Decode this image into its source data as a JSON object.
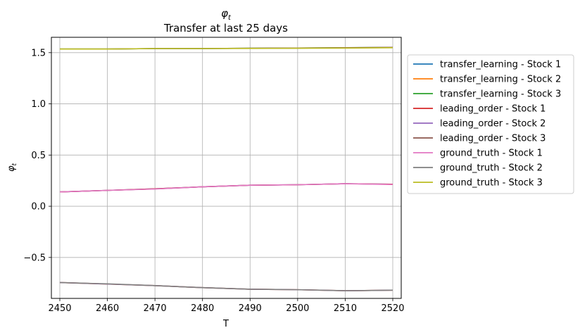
{
  "chart_data": {
    "type": "line",
    "title": "φ_t",
    "subtitle": "Transfer at last 25 days",
    "xlabel": "T",
    "ylabel": "φ_t",
    "xlim": [
      2450,
      2520
    ],
    "ylim": [
      -0.9,
      1.65
    ],
    "xticks": [
      2450,
      2460,
      2470,
      2480,
      2490,
      2500,
      2510,
      2520
    ],
    "xtick_labels": [
      "2450",
      "2460",
      "2470",
      "2480",
      "2490",
      "2500",
      "2510",
      "2520"
    ],
    "yticks": [
      -0.5,
      0.0,
      0.5,
      1.0,
      1.5
    ],
    "ytick_labels": [
      "−0.5",
      "0.0",
      "0.5",
      "1.0",
      "1.5"
    ],
    "grid": true,
    "legend_position": "outside-right",
    "x": [
      2450,
      2460,
      2470,
      2480,
      2490,
      2500,
      2510,
      2520
    ],
    "series": [
      {
        "name": "transfer_learning - Stock 1",
        "color": "#1f77b4",
        "values": [
          0.14,
          0.155,
          0.17,
          0.19,
          0.205,
          0.21,
          0.22,
          0.215
        ]
      },
      {
        "name": "transfer_learning - Stock 2",
        "color": "#ff7f0e",
        "values": [
          -0.745,
          -0.76,
          -0.775,
          -0.795,
          -0.81,
          -0.815,
          -0.825,
          -0.82
        ]
      },
      {
        "name": "transfer_learning - Stock 3",
        "color": "#2ca02c",
        "values": [
          1.535,
          1.535,
          1.54,
          1.54,
          1.543,
          1.545,
          1.548,
          1.552
        ]
      },
      {
        "name": "leading_order - Stock 1",
        "color": "#d62728",
        "values": [
          0.14,
          0.155,
          0.17,
          0.19,
          0.205,
          0.21,
          0.22,
          0.215
        ]
      },
      {
        "name": "leading_order - Stock 2",
        "color": "#9467bd",
        "values": [
          -0.745,
          -0.76,
          -0.775,
          -0.795,
          -0.81,
          -0.815,
          -0.825,
          -0.82
        ]
      },
      {
        "name": "leading_order - Stock 3",
        "color": "#8c564b",
        "values": [
          1.535,
          1.535,
          1.54,
          1.54,
          1.543,
          1.545,
          1.548,
          1.552
        ]
      },
      {
        "name": "ground_truth - Stock 1",
        "color": "#e377c2",
        "values": [
          0.14,
          0.155,
          0.168,
          0.19,
          0.205,
          0.21,
          0.22,
          0.212
        ]
      },
      {
        "name": "ground_truth - Stock 2",
        "color": "#7f7f7f",
        "values": [
          -0.745,
          -0.758,
          -0.775,
          -0.795,
          -0.81,
          -0.815,
          -0.825,
          -0.82
        ]
      },
      {
        "name": "ground_truth - Stock 3",
        "color": "#bcbd22",
        "values": [
          1.535,
          1.535,
          1.54,
          1.54,
          1.541,
          1.543,
          1.545,
          1.548
        ]
      }
    ]
  }
}
